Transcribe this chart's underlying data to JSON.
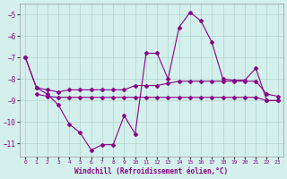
{
  "xlabel": "Windchill (Refroidissement éolien,°C)",
  "bg_color": "#d4f0ec",
  "grid_color": "#b0d4cc",
  "line_color": "#880088",
  "ylim": [
    -11.6,
    -4.5
  ],
  "xlim": [
    -0.5,
    23.5
  ],
  "yticks": [
    -11,
    -10,
    -9,
    -8,
    -7,
    -6,
    -5
  ],
  "xticks": [
    0,
    1,
    2,
    3,
    4,
    5,
    6,
    7,
    8,
    9,
    10,
    11,
    12,
    13,
    14,
    15,
    16,
    17,
    18,
    19,
    20,
    21,
    22,
    23
  ],
  "line1_x": [
    0,
    1,
    2,
    3,
    4,
    5,
    6,
    7,
    8,
    9,
    10,
    11,
    12,
    13,
    14,
    15,
    16,
    17,
    18,
    19,
    20,
    21,
    22,
    23
  ],
  "line1_y": [
    -7.0,
    -8.4,
    -8.5,
    -8.6,
    -8.5,
    -8.5,
    -8.5,
    -8.5,
    -8.5,
    -8.5,
    -8.3,
    -8.3,
    -8.3,
    -8.2,
    -8.1,
    -8.1,
    -8.1,
    -8.1,
    -8.1,
    -8.1,
    -8.1,
    -8.1,
    -8.7,
    -8.8
  ],
  "line2_x": [
    1,
    2,
    3,
    4,
    5,
    6,
    7,
    8,
    9,
    10,
    11,
    12,
    13,
    14,
    15,
    16,
    17,
    18,
    19,
    20,
    21,
    22,
    23
  ],
  "line2_y": [
    -8.7,
    -8.8,
    -8.85,
    -8.85,
    -8.85,
    -8.85,
    -8.85,
    -8.85,
    -8.85,
    -8.85,
    -8.85,
    -8.85,
    -8.85,
    -8.85,
    -8.85,
    -8.85,
    -8.85,
    -8.85,
    -8.85,
    -8.85,
    -8.85,
    -9.0,
    -9.0
  ],
  "line3_x": [
    0,
    1,
    2,
    3,
    4,
    5,
    6,
    7,
    8,
    9,
    10,
    11,
    12,
    13,
    14,
    15,
    16,
    17,
    18,
    19,
    20,
    21,
    22,
    23
  ],
  "line3_y": [
    -7.0,
    -8.4,
    -8.7,
    -9.2,
    -10.1,
    -10.5,
    -11.3,
    -11.05,
    -11.05,
    -9.7,
    -10.55,
    -6.8,
    -6.8,
    -8.0,
    -5.6,
    -4.9,
    -5.3,
    -6.3,
    -8.0,
    -8.05,
    -8.05,
    -7.5,
    -9.0,
    -9.0
  ]
}
